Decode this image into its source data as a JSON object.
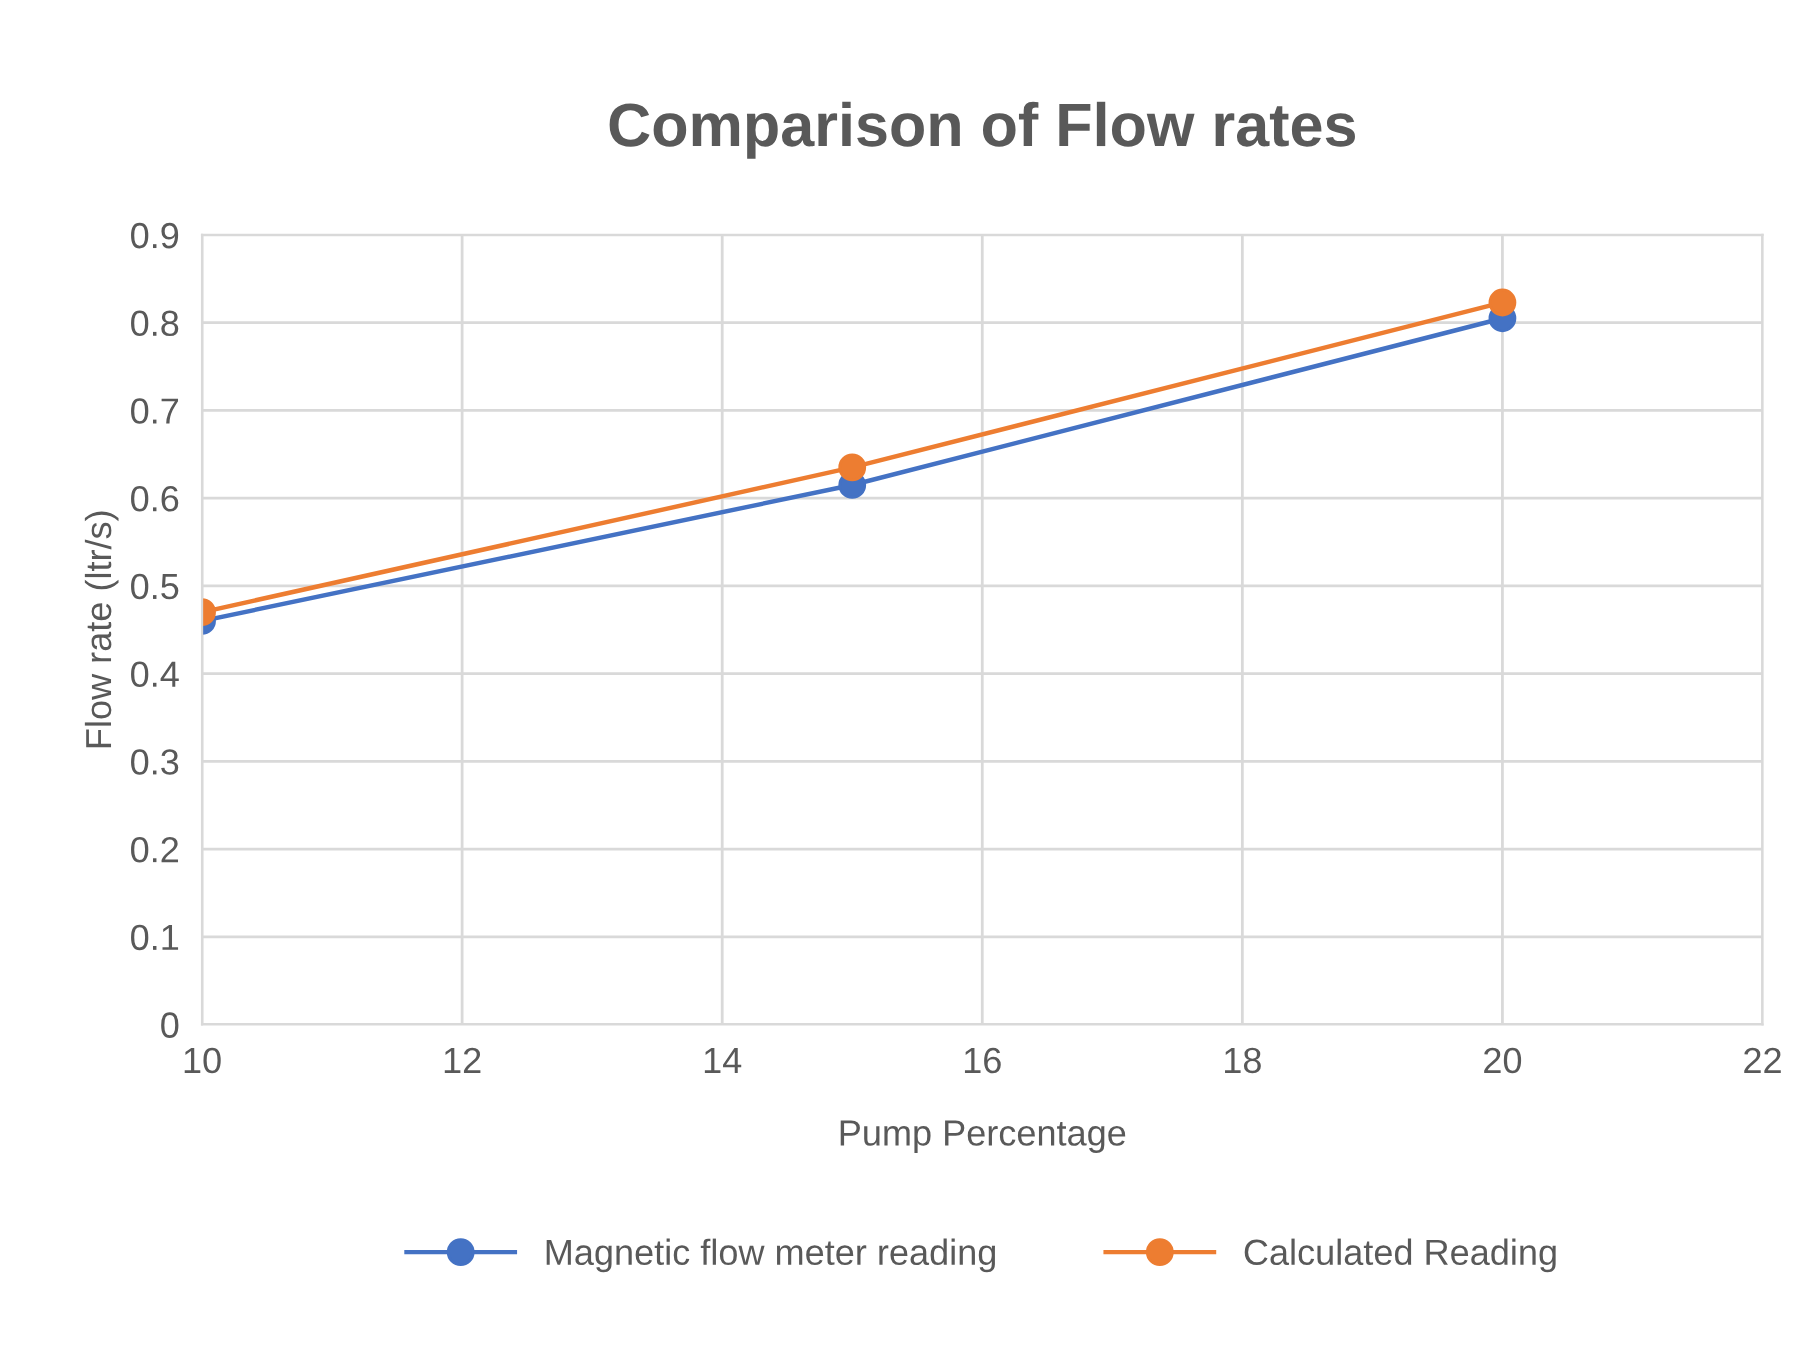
{
  "chart_data": {
    "type": "line",
    "title": "Comparison of Flow rates",
    "xlabel": "Pump Percentage",
    "ylabel": "Flow rate (ltr/s)",
    "x": [
      10,
      15,
      20
    ],
    "series": [
      {
        "name": "Magnetic flow meter reading",
        "color": "#4472c4",
        "values": [
          0.46,
          0.615,
          0.805
        ]
      },
      {
        "name": "Calculated Reading",
        "color": "#ed7d31",
        "values": [
          0.47,
          0.635,
          0.823
        ]
      }
    ],
    "xlim": [
      10,
      22
    ],
    "xticks": [
      10,
      12,
      14,
      16,
      18,
      20,
      22
    ],
    "ylim": [
      0,
      0.9
    ],
    "yticks": [
      0,
      0.1,
      0.2,
      0.3,
      0.4,
      0.5,
      0.6,
      0.7,
      0.8,
      0.9
    ],
    "grid": true,
    "legend": "bottom",
    "marker": "circle",
    "line_style": "solid"
  }
}
